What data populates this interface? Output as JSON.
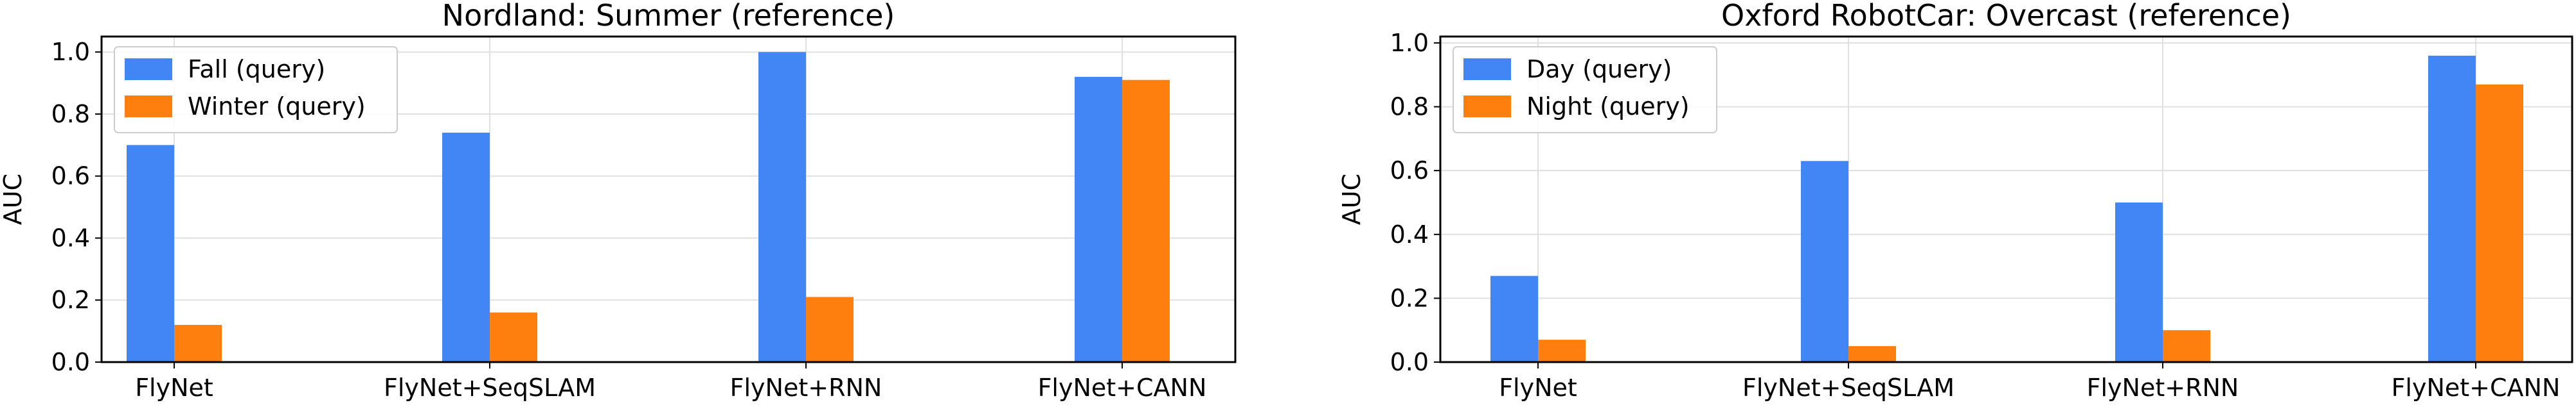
{
  "chart_data": [
    {
      "type": "bar",
      "title": "Nordland: Summer (reference)",
      "xlabel": "",
      "ylabel": "AUC",
      "ylim": [
        0,
        1.05
      ],
      "yticks": [
        "0.0",
        "0.2",
        "0.4",
        "0.6",
        "0.8",
        "1.0"
      ],
      "grid": true,
      "legend_position": "top-left",
      "categories": [
        "FlyNet",
        "FlyNet+SeqSLAM",
        "FlyNet+RNN",
        "FlyNet+CANN"
      ],
      "series": [
        {
          "name": "Fall (query)",
          "color": "#4285f4",
          "values": [
            0.7,
            0.74,
            1.0,
            0.92
          ]
        },
        {
          "name": "Winter (query)",
          "color": "#ff7f0e",
          "values": [
            0.12,
            0.16,
            0.21,
            0.91
          ]
        }
      ]
    },
    {
      "type": "bar",
      "title": "Oxford RobotCar: Overcast (reference)",
      "xlabel": "",
      "ylabel": "AUC",
      "ylim": [
        0,
        1.02
      ],
      "yticks": [
        "0.0",
        "0.2",
        "0.4",
        "0.6",
        "0.8",
        "1.0"
      ],
      "grid": true,
      "legend_position": "top-left",
      "categories": [
        "FlyNet",
        "FlyNet+SeqSLAM",
        "FlyNet+RNN",
        "FlyNet+CANN"
      ],
      "series": [
        {
          "name": "Day (query)",
          "color": "#4285f4",
          "values": [
            0.27,
            0.63,
            0.5,
            0.96
          ]
        },
        {
          "name": "Night (query)",
          "color": "#ff7f0e",
          "values": [
            0.07,
            0.05,
            0.1,
            0.87
          ]
        }
      ]
    }
  ]
}
